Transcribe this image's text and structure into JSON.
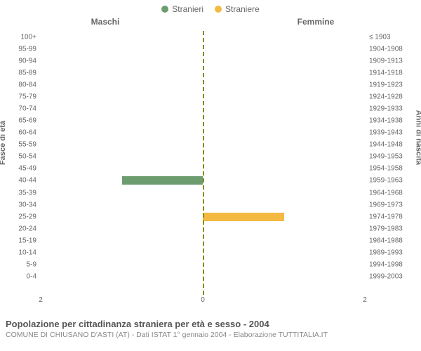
{
  "legend": {
    "items": [
      {
        "label": "Stranieri",
        "color": "#6d9c6f"
      },
      {
        "label": "Straniere",
        "color": "#f4b942"
      }
    ]
  },
  "headers": {
    "left": "Maschi",
    "right": "Femmine"
  },
  "y_left_title": "Fasce di età",
  "y_right_title": "Anni di nascita",
  "chart": {
    "type": "population-pyramid",
    "x_max": 2,
    "x_ticks_left": [
      "2",
      "0"
    ],
    "x_ticks_right": [
      "0",
      "2"
    ],
    "background_color": "#ffffff",
    "centerline_color": "#888800",
    "left_bar_color": "#6d9c6f",
    "right_bar_color": "#f4b942",
    "rows": [
      {
        "age": "100+",
        "birth": "≤ 1903",
        "male": 0,
        "female": 0
      },
      {
        "age": "95-99",
        "birth": "1904-1908",
        "male": 0,
        "female": 0
      },
      {
        "age": "90-94",
        "birth": "1909-1913",
        "male": 0,
        "female": 0
      },
      {
        "age": "85-89",
        "birth": "1914-1918",
        "male": 0,
        "female": 0
      },
      {
        "age": "80-84",
        "birth": "1919-1923",
        "male": 0,
        "female": 0
      },
      {
        "age": "75-79",
        "birth": "1924-1928",
        "male": 0,
        "female": 0
      },
      {
        "age": "70-74",
        "birth": "1929-1933",
        "male": 0,
        "female": 0
      },
      {
        "age": "65-69",
        "birth": "1934-1938",
        "male": 0,
        "female": 0
      },
      {
        "age": "60-64",
        "birth": "1939-1943",
        "male": 0,
        "female": 0
      },
      {
        "age": "55-59",
        "birth": "1944-1948",
        "male": 0,
        "female": 0
      },
      {
        "age": "50-54",
        "birth": "1949-1953",
        "male": 0,
        "female": 0
      },
      {
        "age": "45-49",
        "birth": "1954-1958",
        "male": 0,
        "female": 0
      },
      {
        "age": "40-44",
        "birth": "1959-1963",
        "male": 1,
        "female": 0
      },
      {
        "age": "35-39",
        "birth": "1964-1968",
        "male": 0,
        "female": 0
      },
      {
        "age": "30-34",
        "birth": "1969-1973",
        "male": 0,
        "female": 0
      },
      {
        "age": "25-29",
        "birth": "1974-1978",
        "male": 0,
        "female": 1
      },
      {
        "age": "20-24",
        "birth": "1979-1983",
        "male": 0,
        "female": 0
      },
      {
        "age": "15-19",
        "birth": "1984-1988",
        "male": 0,
        "female": 0
      },
      {
        "age": "10-14",
        "birth": "1989-1993",
        "male": 0,
        "female": 0
      },
      {
        "age": "5-9",
        "birth": "1994-1998",
        "male": 0,
        "female": 0
      },
      {
        "age": "0-4",
        "birth": "1999-2003",
        "male": 0,
        "female": 0
      }
    ]
  },
  "caption": {
    "title": "Popolazione per cittadinanza straniera per età e sesso - 2004",
    "subtitle": "COMUNE DI CHIUSANO D'ASTI (AT) - Dati ISTAT 1° gennaio 2004 - Elaborazione TUTTITALIA.IT"
  }
}
